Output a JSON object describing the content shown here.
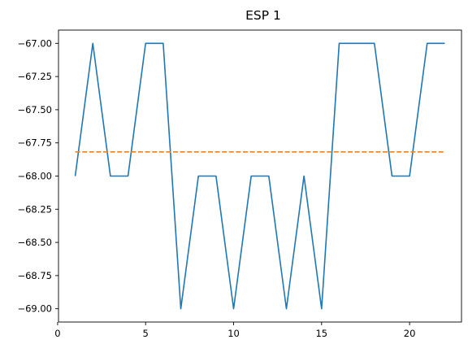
{
  "chart_data": {
    "type": "line",
    "title": "ESP 1",
    "xlabel": "",
    "ylabel": "",
    "xlim": [
      0.05,
      22.95
    ],
    "ylim": [
      -69.1,
      -66.9
    ],
    "grid": false,
    "x_ticks": [
      0,
      5,
      10,
      15,
      20
    ],
    "x_tick_labels": [
      "0",
      "5",
      "10",
      "15",
      "20"
    ],
    "y_ticks": [
      -67.0,
      -67.25,
      -67.5,
      -67.75,
      -68.0,
      -68.25,
      -68.5,
      -68.75,
      -69.0
    ],
    "y_tick_labels": [
      "−67.00",
      "−67.25",
      "−67.50",
      "−67.75",
      "−68.00",
      "−68.25",
      "−68.50",
      "−68.75",
      "−69.00"
    ],
    "series": [
      {
        "style": "solid",
        "color": "#1f77b4",
        "x": [
          1,
          2,
          3,
          4,
          5,
          6,
          7,
          8,
          9,
          10,
          11,
          12,
          13,
          14,
          15,
          16,
          17,
          18,
          19,
          20,
          21,
          22
        ],
        "y": [
          -68,
          -67,
          -68,
          -68,
          -67,
          -67,
          -69,
          -68,
          -68,
          -69,
          -68,
          -68,
          -69,
          -68,
          -69,
          -67,
          -67,
          -67,
          -68,
          -68,
          -67,
          -67
        ]
      },
      {
        "style": "dashed",
        "color": "#ff7f0e",
        "x": [
          1,
          22
        ],
        "y": [
          -67.818,
          -67.818
        ]
      }
    ]
  }
}
